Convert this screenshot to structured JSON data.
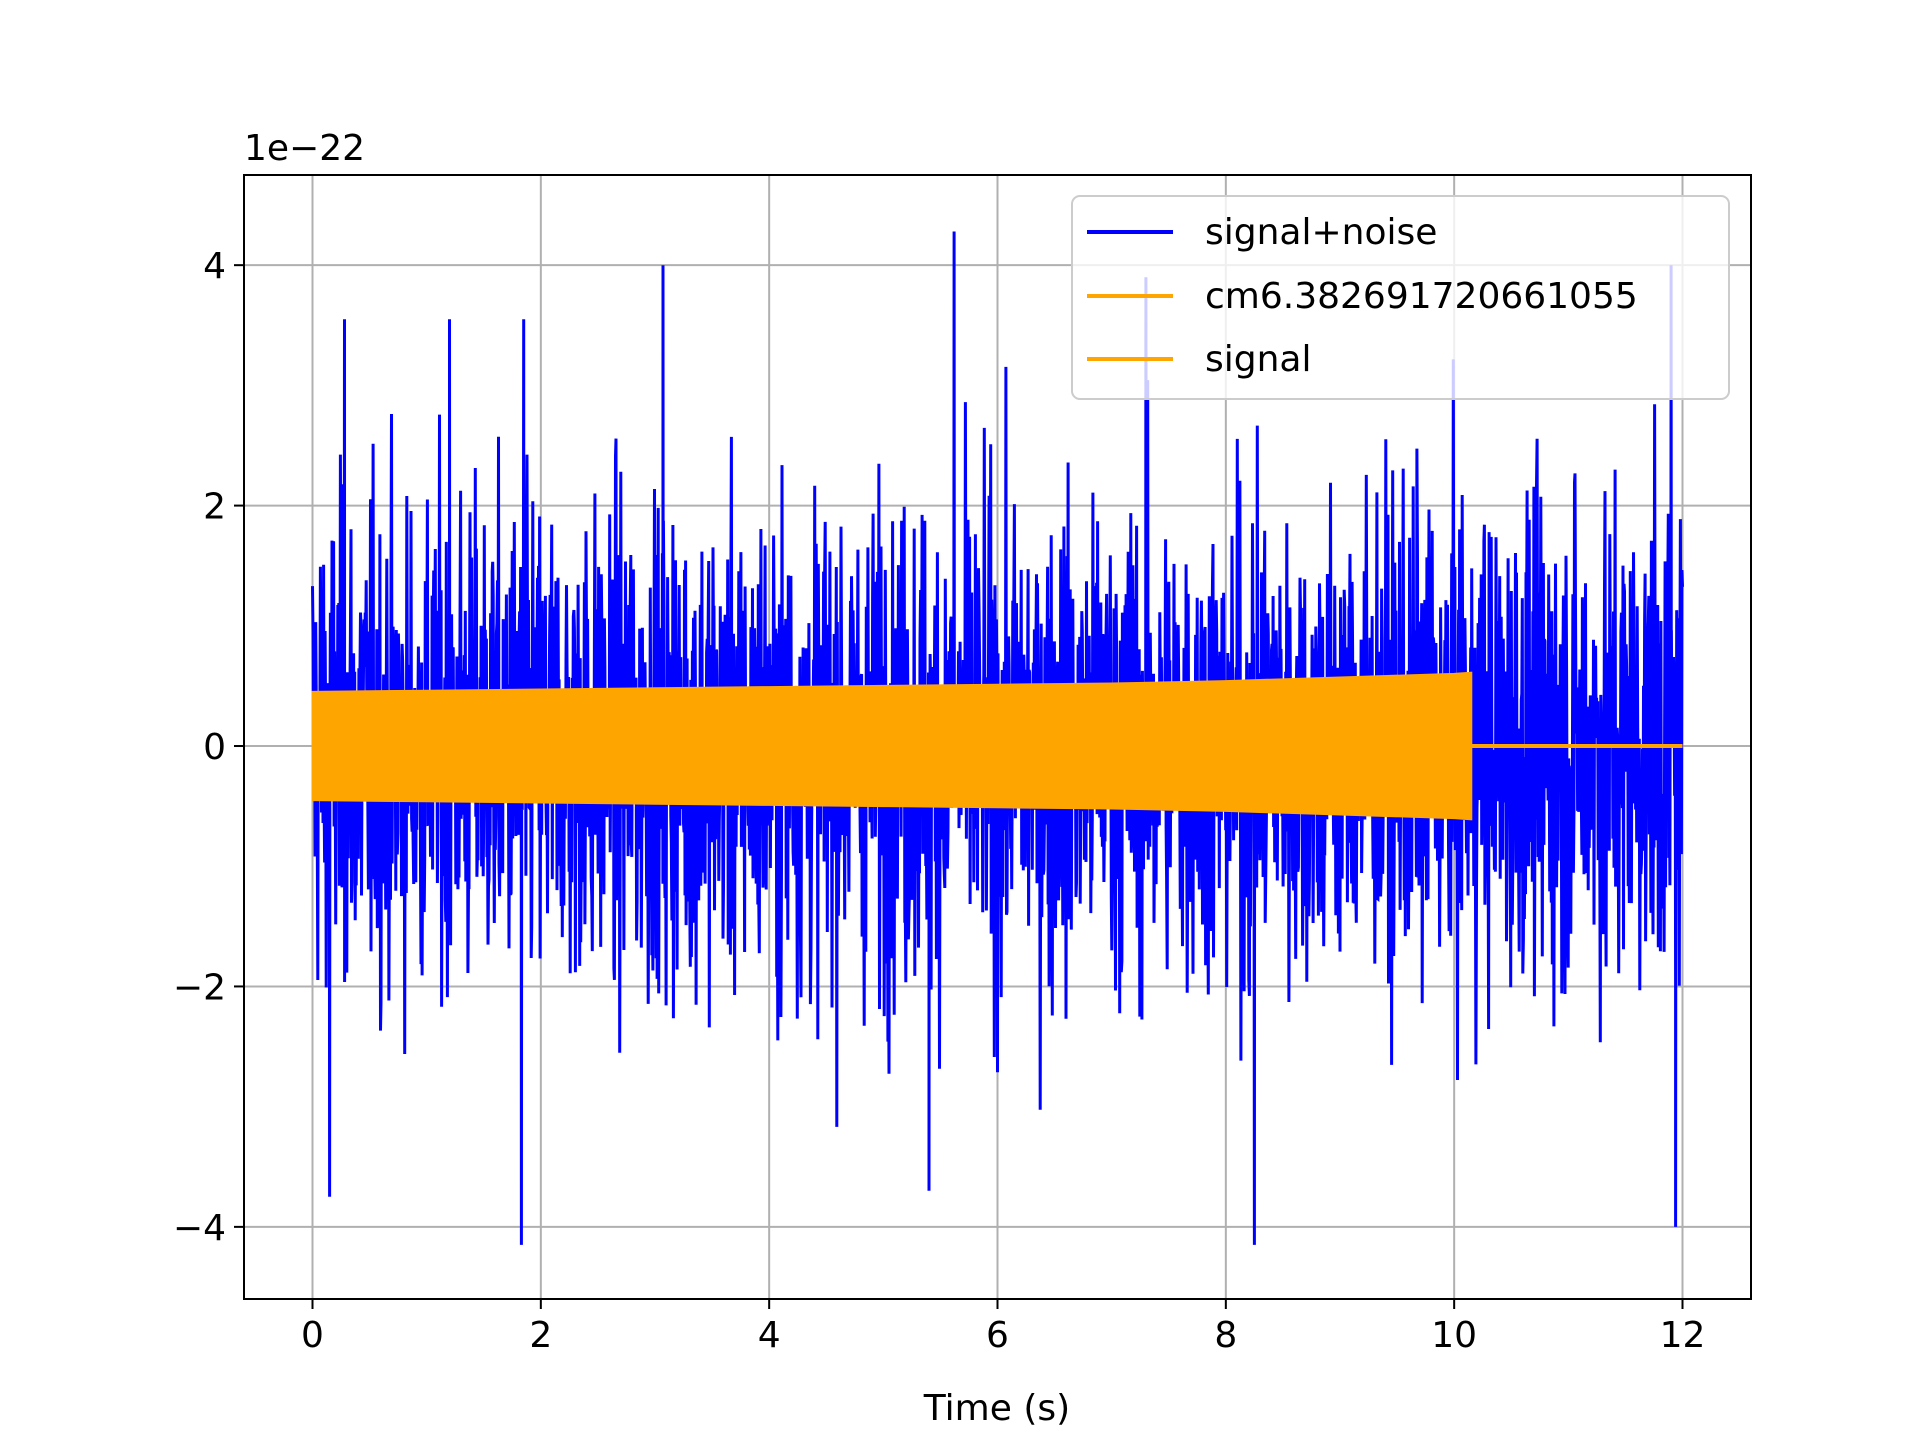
{
  "chart_data": {
    "type": "line",
    "title": "",
    "xlabel": "Time (s)",
    "ylabel": "",
    "y_offset_label": "1e−22",
    "xlim": [
      -0.6,
      12.6
    ],
    "ylim": [
      -4.6,
      4.75
    ],
    "y_unit_scale": 1e-22,
    "x_ticks": [
      0,
      2,
      4,
      6,
      8,
      10,
      12
    ],
    "x_tick_labels": [
      "0",
      "2",
      "4",
      "6",
      "8",
      "10",
      "12"
    ],
    "y_ticks": [
      -4,
      -2,
      0,
      2,
      4
    ],
    "y_tick_labels": [
      "−4",
      "−2",
      "0",
      "2",
      "4"
    ],
    "grid": true,
    "legend_position": "top-right",
    "series": [
      {
        "name": "signal+noise",
        "color": "#0000ff",
        "kind": "noise",
        "x_range": [
          0,
          12
        ],
        "typical_amplitude": 1.0,
        "max": 4.28,
        "min": -4.15,
        "notable_peaks": [
          [
            0.28,
            3.55
          ],
          [
            1.2,
            3.55
          ],
          [
            1.85,
            3.55
          ],
          [
            3.07,
            4.0
          ],
          [
            5.62,
            4.28
          ],
          [
            7.3,
            3.9
          ],
          [
            11.9,
            4.0
          ]
        ],
        "notable_troughs": [
          [
            0.15,
            -3.75
          ],
          [
            1.83,
            -4.15
          ],
          [
            5.4,
            -3.7
          ],
          [
            8.25,
            -4.15
          ],
          [
            11.94,
            -4.0
          ]
        ]
      },
      {
        "name": "cm6.382691720661055",
        "color": "#ffa500",
        "kind": "legend-only"
      },
      {
        "name": "signal",
        "color": "#ffa500",
        "kind": "chirp-envelope",
        "x": [
          0,
          1,
          2,
          3,
          4,
          5,
          6,
          7,
          8,
          9,
          10,
          10.15,
          10.16,
          12
        ],
        "envelope": [
          0.45,
          0.46,
          0.47,
          0.48,
          0.49,
          0.5,
          0.51,
          0.52,
          0.54,
          0.57,
          0.6,
          0.61,
          0,
          0
        ]
      }
    ]
  }
}
